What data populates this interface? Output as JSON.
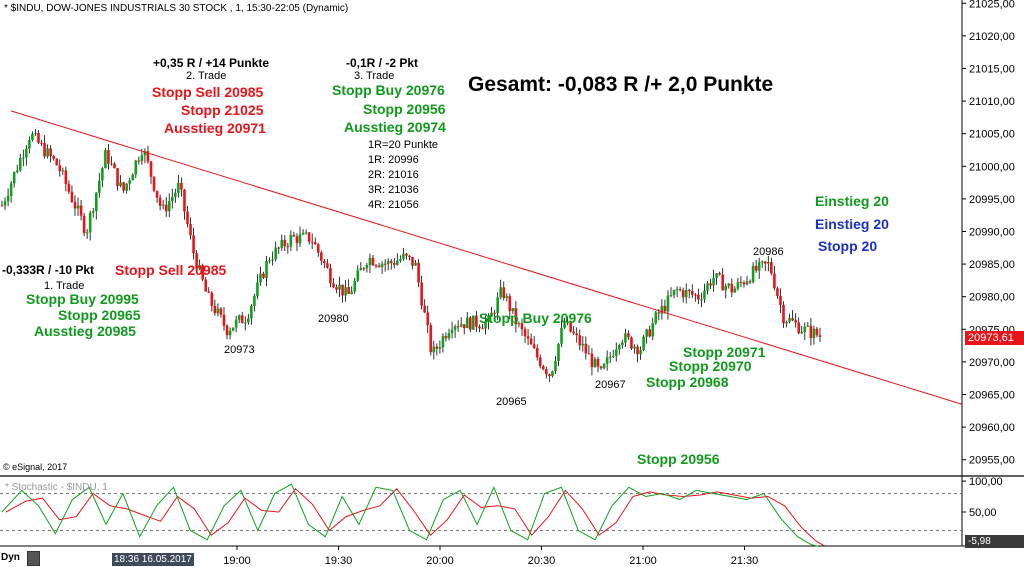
{
  "header": {
    "title": "* $INDU, DOW-JONES INDUSTRIALS 30 STOCK , 1, 15:30-22:05 (Dynamic)",
    "copyright": "© eSignal, 2017",
    "stoch_title": "* Stochastic - $INDU, 1",
    "dyn_label": "Dyn",
    "time_badge": "18:36 16.05.2017"
  },
  "annotations": {
    "gesamt": "Gesamt: -0,083 R /+ 2,0 Punkte",
    "t1_result": "-0,333R / -10 Pkt",
    "t1_label": "1. Trade",
    "t1_stopp_buy": "Stopp Buy 20995",
    "t1_stopp": "Stopp 20965",
    "t1_ausstieg": "Ausstieg 20985",
    "stopp_sell_20985": "Stopp Sell 20985",
    "t2_result": "+0,35 R / +14 Punkte",
    "t2_label": "2. Trade",
    "t2_stopp_sell": "Stopp Sell 20985",
    "t2_stopp": "Stopp 21025",
    "t2_ausstieg": "Ausstieg 20971",
    "t3_result": "-0,1R / -2 Pkt",
    "t3_label": "3. Trade",
    "t3_stopp_buy": "Stopp Buy 20976",
    "t3_stopp": "Stopp 20956",
    "t3_ausstieg": "Ausstieg 20974",
    "r_levels": [
      "1R=20 Punkte",
      "1R: 20996",
      "2R: 21016",
      "3R: 21036",
      "4R: 21056"
    ],
    "einstieg_green": "Einstieg 20",
    "einstieg_blue": "Einstieg 20",
    "stopp_blue": "Stopp 20",
    "stopp_buy_20976_mid": "Stopp Buy 20976",
    "stopp_20971": "Stopp 20971",
    "stopp_20970": "Stopp 20970",
    "stopp_20968": "Stopp 20968",
    "stopp_20956_bottom": "Stopp 20956",
    "low_20973": "20973",
    "low_20980": "20980",
    "low_20965": "20965",
    "low_20967": "20967",
    "high_20986": "20986"
  },
  "colors": {
    "up_candle": "#10a020",
    "down_candle": "#e8141a",
    "trendline": "#e8141a",
    "stoch_k": "#10a020",
    "stoch_d": "#e8141a"
  },
  "chart_data": {
    "type": "candlestick",
    "x_ticks": [
      "19:00",
      "19:30",
      "20:00",
      "20:30",
      "21:00",
      "21:30"
    ],
    "y_ticks": [
      "21025,00",
      "21020,00",
      "21015,00",
      "21010,00",
      "21005,00",
      "21000,00",
      "20995,00",
      "20990,00",
      "20985,00",
      "20980,00",
      "20975,00",
      "20970,00",
      "20965,00",
      "20960,00",
      "20955,00"
    ],
    "y_range": [
      20952.5,
      21025.5
    ],
    "last_price_label": "20973,61",
    "last_price": 20973.61,
    "stochastic": {
      "y_ticks": [
        "100,00",
        "50,00"
      ],
      "y_range": [
        -5,
        105
      ],
      "last_label": "-5,98",
      "last_value": -5.98,
      "upper_band": 80,
      "lower_band": 20
    },
    "trendline": {
      "from": [
        "15:30",
        21008.5
      ],
      "to": [
        "22:05",
        20963.5
      ]
    },
    "price_path": [
      [
        15.5,
        20994
      ],
      [
        16.5,
        21005
      ],
      [
        17.5,
        21000
      ],
      [
        18.5,
        20990
      ],
      [
        19.2,
        21002
      ],
      [
        19.8,
        20996
      ],
      [
        20.5,
        21003
      ],
      [
        21.2,
        20993
      ],
      [
        21.8,
        20997
      ],
      [
        22.3,
        20987
      ],
      [
        22.8,
        20980
      ],
      [
        23.5,
        20975
      ],
      [
        24.2,
        20977
      ],
      [
        25.0,
        20986
      ],
      [
        25.8,
        20989
      ],
      [
        26.5,
        20989
      ],
      [
        27.2,
        20983
      ],
      [
        27.8,
        20980
      ],
      [
        28.5,
        20986
      ],
      [
        29.2,
        20985
      ],
      [
        29.8,
        20986
      ],
      [
        30.2,
        20985
      ],
      [
        30.8,
        20971
      ],
      [
        31.5,
        20976
      ],
      [
        32.2,
        20976
      ],
      [
        32.8,
        20976
      ],
      [
        33.3,
        20981
      ],
      [
        33.8,
        20976
      ],
      [
        34.5,
        20971
      ],
      [
        35.0,
        20968
      ],
      [
        35.5,
        20976
      ],
      [
        36.2,
        20972
      ],
      [
        36.8,
        20968
      ],
      [
        37.5,
        20974
      ],
      [
        38.2,
        20972
      ],
      [
        38.8,
        20977
      ],
      [
        39.5,
        20981
      ],
      [
        40.3,
        20980
      ],
      [
        40.8,
        20983
      ],
      [
        41.5,
        20981
      ],
      [
        42.3,
        20984
      ],
      [
        42.8,
        20985
      ],
      [
        43.3,
        20977
      ],
      [
        44.0,
        20975
      ],
      [
        44.6,
        20974
      ]
    ],
    "stoch_path": [
      [
        15.5,
        50
      ],
      [
        16.2,
        85
      ],
      [
        16.8,
        60
      ],
      [
        17.4,
        15
      ],
      [
        18.0,
        70
      ],
      [
        18.6,
        90
      ],
      [
        19.2,
        30
      ],
      [
        19.8,
        80
      ],
      [
        20.4,
        10
      ],
      [
        21.0,
        60
      ],
      [
        21.6,
        90
      ],
      [
        22.2,
        20
      ],
      [
        22.8,
        5
      ],
      [
        23.4,
        60
      ],
      [
        24.0,
        85
      ],
      [
        24.6,
        20
      ],
      [
        25.2,
        80
      ],
      [
        25.8,
        95
      ],
      [
        26.4,
        30
      ],
      [
        27.0,
        10
      ],
      [
        27.6,
        75
      ],
      [
        28.2,
        30
      ],
      [
        28.8,
        90
      ],
      [
        29.4,
        85
      ],
      [
        30.0,
        20
      ],
      [
        30.6,
        5
      ],
      [
        31.2,
        70
      ],
      [
        31.8,
        85
      ],
      [
        32.4,
        30
      ],
      [
        33.0,
        90
      ],
      [
        33.6,
        20
      ],
      [
        34.2,
        5
      ],
      [
        34.8,
        80
      ],
      [
        35.4,
        90
      ],
      [
        36.0,
        20
      ],
      [
        36.6,
        5
      ],
      [
        37.2,
        60
      ],
      [
        37.8,
        90
      ],
      [
        38.4,
        75
      ],
      [
        39.0,
        80
      ],
      [
        39.6,
        70
      ],
      [
        40.2,
        85
      ],
      [
        40.8,
        80
      ],
      [
        41.4,
        75
      ],
      [
        42.0,
        70
      ],
      [
        42.6,
        80
      ],
      [
        43.2,
        40
      ],
      [
        43.8,
        10
      ],
      [
        44.3,
        -3
      ],
      [
        44.6,
        -6
      ]
    ]
  }
}
